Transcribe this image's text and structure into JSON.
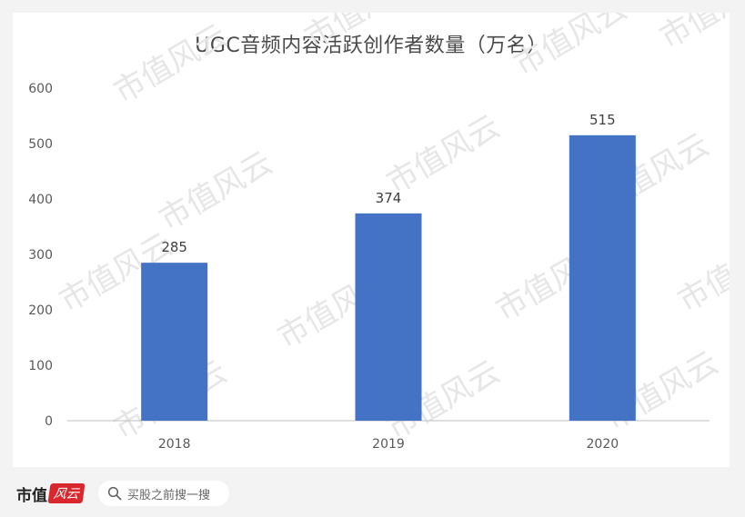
{
  "chart_data": {
    "type": "bar",
    "title": "UGC音频内容活跃创作者数量（万名）",
    "categories": [
      "2018",
      "2019",
      "2020"
    ],
    "values": [
      285,
      374,
      515
    ],
    "ylim": [
      0,
      600
    ],
    "yticks": [
      0,
      100,
      200,
      300,
      400,
      500,
      600
    ],
    "data_labels": [
      "285",
      "374",
      "515"
    ],
    "bar_color": "#4472c4",
    "grid": false,
    "legend": "none"
  },
  "footer": {
    "brand_text": "市值",
    "brand_seal": "风云",
    "search_label": "买股之前搜一搜"
  },
  "watermark": "市值风云"
}
